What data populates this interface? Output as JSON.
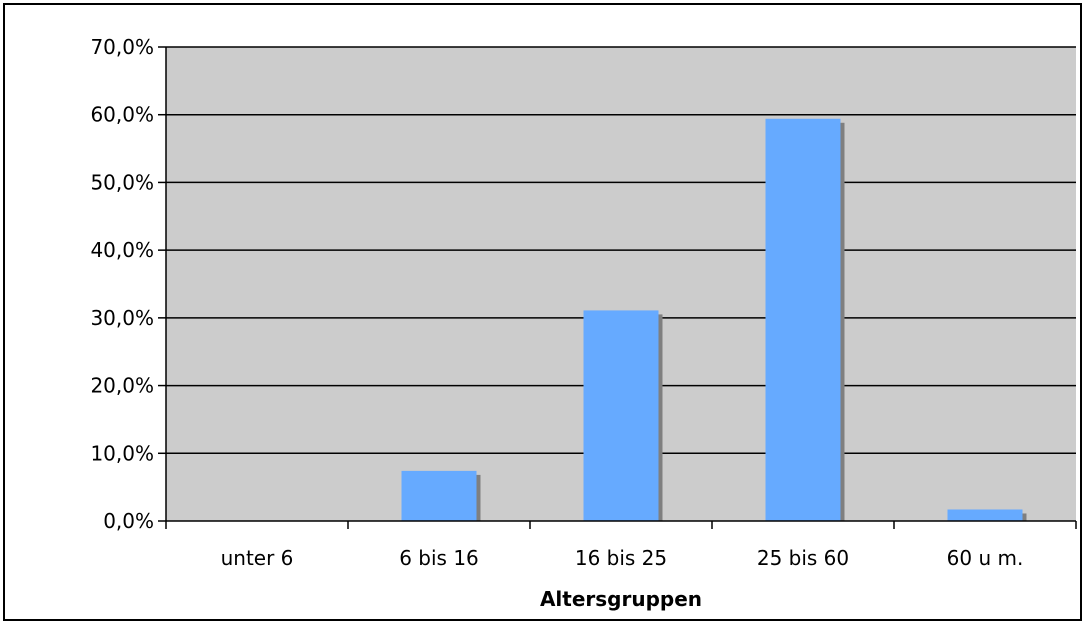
{
  "chart_data": {
    "type": "bar",
    "categories": [
      "unter 6",
      "6 bis 16",
      "16 bis 25",
      "25 bis 60",
      "60 u m."
    ],
    "values": [
      0.0,
      7.4,
      31.1,
      59.4,
      1.7
    ],
    "title": "",
    "xlabel": "Altersgruppen",
    "ylabel": "",
    "ylim": [
      0,
      70
    ],
    "ytick_step": 10,
    "ytick_labels": [
      "0,0%",
      "10,0%",
      "20,0%",
      "30,0%",
      "40,0%",
      "50,0%",
      "60,0%",
      "70,0%"
    ],
    "grid": true,
    "legend": "none",
    "colors": {
      "bar": "#66aaff",
      "bar_shadow": "#7f7f7f",
      "plot_background": "#cccccc",
      "gridline": "#000000"
    }
  }
}
